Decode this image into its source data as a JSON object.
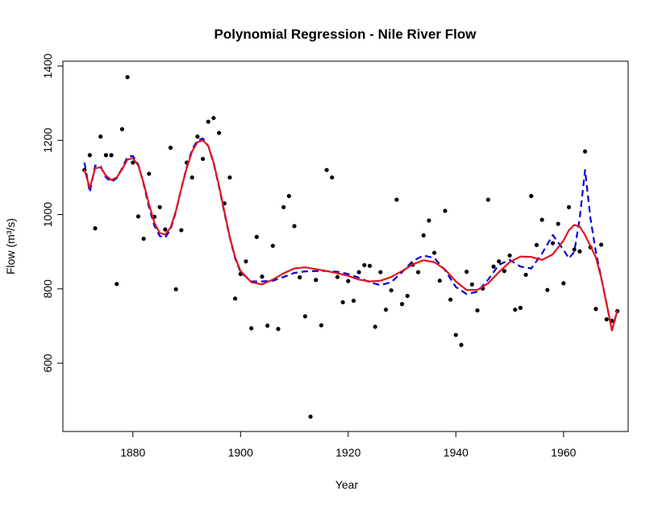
{
  "chart_data": {
    "type": "scatter-fit",
    "title": "Polynomial Regression - Nile River Flow",
    "x_label": "Year",
    "y_label": "Flow (m³/s)",
    "xlim": [
      1867,
      1972
    ],
    "ylim": [
      416,
      1413
    ],
    "xticks": [
      1880,
      1900,
      1920,
      1940,
      1960
    ],
    "yticks": [
      600,
      800,
      1000,
      1200,
      1400
    ],
    "points": {
      "color": "#000000",
      "x": [
        1871,
        1872,
        1873,
        1874,
        1875,
        1876,
        1877,
        1878,
        1879,
        1880,
        1881,
        1882,
        1883,
        1884,
        1885,
        1886,
        1887,
        1888,
        1889,
        1890,
        1891,
        1892,
        1893,
        1894,
        1895,
        1896,
        1897,
        1898,
        1899,
        1900,
        1901,
        1902,
        1903,
        1904,
        1905,
        1906,
        1907,
        1908,
        1909,
        1910,
        1911,
        1912,
        1913,
        1914,
        1915,
        1916,
        1917,
        1918,
        1919,
        1920,
        1921,
        1922,
        1923,
        1924,
        1925,
        1926,
        1927,
        1928,
        1929,
        1930,
        1931,
        1932,
        1933,
        1934,
        1935,
        1936,
        1937,
        1938,
        1939,
        1940,
        1941,
        1942,
        1943,
        1944,
        1945,
        1946,
        1947,
        1948,
        1949,
        1950,
        1951,
        1952,
        1953,
        1954,
        1955,
        1956,
        1957,
        1958,
        1959,
        1960,
        1961,
        1962,
        1963,
        1964,
        1965,
        1966,
        1967,
        1968,
        1969,
        1970
      ],
      "values": [
        1120,
        1160,
        963,
        1210,
        1160,
        1160,
        813,
        1230,
        1370,
        1140,
        995,
        935,
        1110,
        994,
        1020,
        960,
        1180,
        799,
        958,
        1140,
        1100,
        1210,
        1150,
        1250,
        1260,
        1220,
        1030,
        1100,
        774,
        840,
        874,
        694,
        940,
        833,
        701,
        916,
        692,
        1020,
        1050,
        969,
        831,
        726,
        456,
        824,
        702,
        1120,
        1100,
        832,
        764,
        821,
        768,
        845,
        864,
        862,
        698,
        845,
        744,
        796,
        1040,
        759,
        781,
        865,
        845,
        944,
        984,
        897,
        822,
        1010,
        771,
        676,
        649,
        846,
        812,
        742,
        801,
        1040,
        860,
        874,
        848,
        890,
        744,
        749,
        838,
        1050,
        918,
        986,
        797,
        923,
        975,
        815,
        1020,
        906,
        901,
        1170,
        912,
        746,
        919,
        718,
        714,
        740
      ]
    },
    "fits": [
      {
        "color": "#0000dd",
        "dashed": true,
        "x": [
          1871,
          1872,
          1873,
          1874,
          1875,
          1876,
          1877,
          1878,
          1879,
          1880,
          1881,
          1882,
          1883,
          1884,
          1885,
          1886,
          1887,
          1888,
          1889,
          1890,
          1891,
          1892,
          1893,
          1894,
          1895,
          1896,
          1897,
          1898,
          1899,
          1900,
          1902,
          1904,
          1906,
          1908,
          1910,
          1912,
          1914,
          1916,
          1918,
          1920,
          1922,
          1924,
          1926,
          1928,
          1930,
          1932,
          1934,
          1936,
          1938,
          1940,
          1942,
          1944,
          1946,
          1948,
          1950,
          1952,
          1954,
          1956,
          1958,
          1960,
          1961,
          1962,
          1963,
          1964,
          1965,
          1966,
          1967,
          1968,
          1969,
          1970
        ],
        "values": [
          1140,
          1060,
          1132,
          1130,
          1100,
          1088,
          1098,
          1125,
          1155,
          1158,
          1135,
          1082,
          1020,
          970,
          942,
          938,
          960,
          1008,
          1070,
          1128,
          1175,
          1200,
          1205,
          1185,
          1138,
          1075,
          1005,
          938,
          882,
          845,
          820,
          820,
          822,
          832,
          843,
          847,
          848,
          848,
          846,
          840,
          830,
          818,
          810,
          818,
          845,
          875,
          890,
          883,
          850,
          805,
          786,
          792,
          825,
          865,
          878,
          860,
          855,
          895,
          945,
          905,
          882,
          900,
          990,
          1120,
          990,
          900,
          830,
          760,
          688,
          742
        ]
      },
      {
        "color": "#e0141e",
        "dashed": false,
        "x": [
          1871,
          1872,
          1873,
          1874,
          1875,
          1876,
          1877,
          1878,
          1879,
          1880,
          1881,
          1882,
          1883,
          1884,
          1885,
          1886,
          1887,
          1888,
          1889,
          1890,
          1891,
          1892,
          1893,
          1894,
          1895,
          1896,
          1897,
          1898,
          1899,
          1900,
          1902,
          1904,
          1906,
          1908,
          1910,
          1912,
          1914,
          1916,
          1918,
          1920,
          1922,
          1924,
          1926,
          1928,
          1930,
          1932,
          1934,
          1936,
          1938,
          1940,
          1942,
          1944,
          1946,
          1948,
          1950,
          1952,
          1954,
          1956,
          1958,
          1960,
          1961,
          1962,
          1963,
          1964,
          1965,
          1966,
          1967,
          1968,
          1969,
          1970
        ],
        "values": [
          1120,
          1072,
          1125,
          1127,
          1105,
          1093,
          1100,
          1122,
          1148,
          1152,
          1132,
          1085,
          1028,
          978,
          950,
          946,
          965,
          1010,
          1070,
          1125,
          1170,
          1195,
          1200,
          1185,
          1140,
          1078,
          1008,
          940,
          885,
          848,
          818,
          812,
          825,
          842,
          855,
          858,
          853,
          848,
          842,
          835,
          825,
          820,
          822,
          832,
          848,
          866,
          877,
          872,
          852,
          820,
          797,
          797,
          815,
          845,
          872,
          887,
          886,
          878,
          893,
          930,
          958,
          972,
          968,
          945,
          915,
          885,
          830,
          760,
          688,
          742
        ]
      }
    ]
  }
}
